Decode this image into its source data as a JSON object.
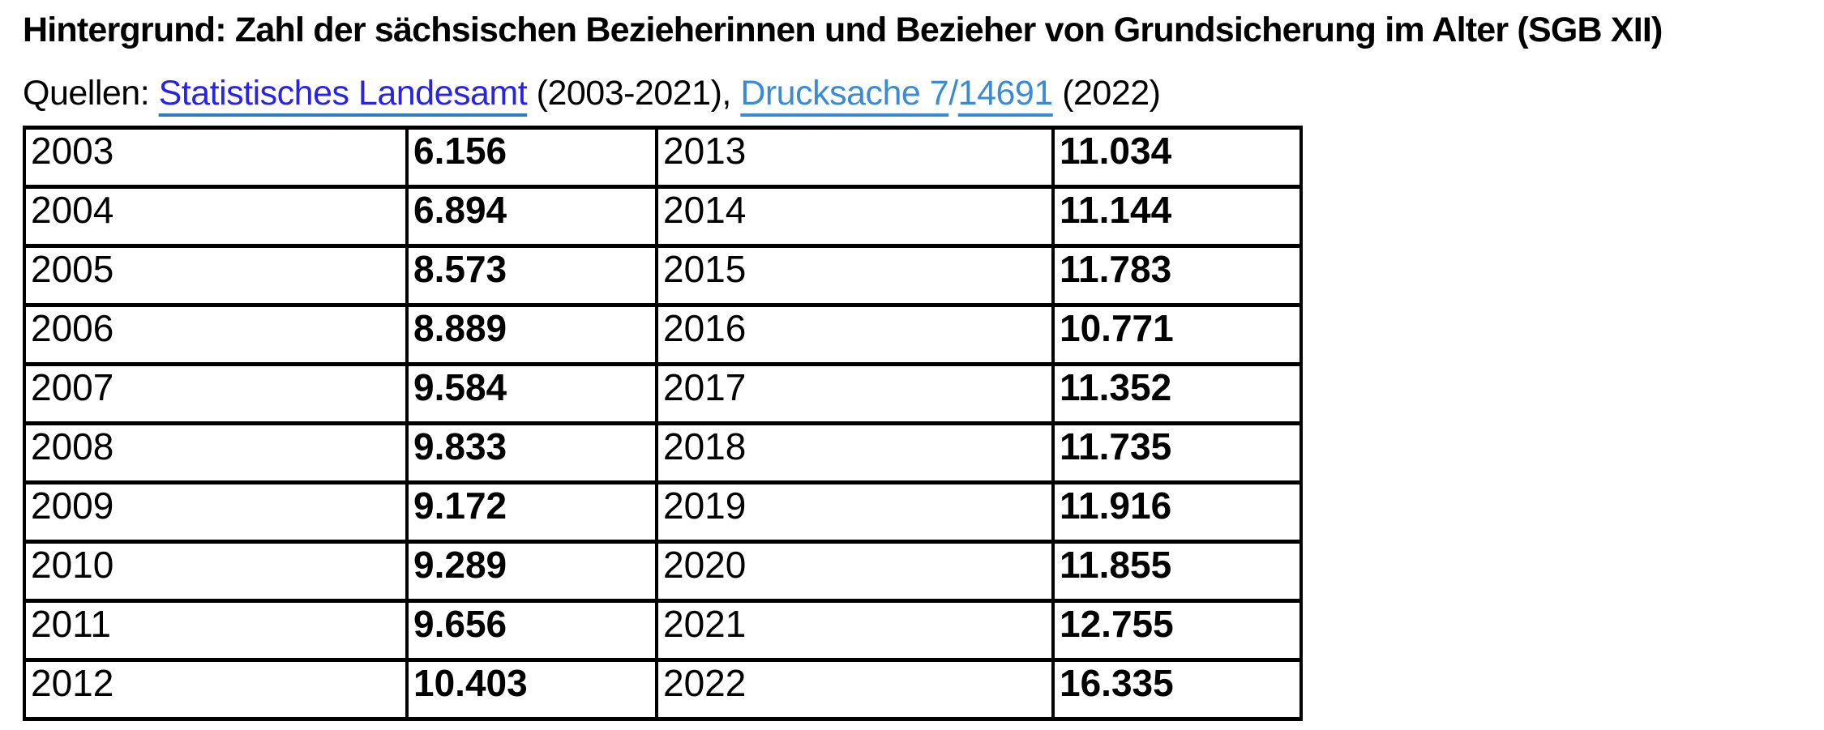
{
  "title": "Hintergrund: Zahl der sächsischen Bezieherinnen und Bezieher von Grundsicherung im Alter (SGB XII)",
  "sources": {
    "prefix": "Quellen: ",
    "link_landesamt": "Statistisches Landesamt",
    "between": " (2003-2021), ",
    "link_drucksache": "Drucksache 7",
    "slash": "/",
    "link_number": "14691",
    "suffix": " (2022)"
  },
  "colors": {
    "text": "#000000",
    "border": "#000000",
    "background": "#ffffff",
    "link_primary": "#2823e6",
    "link_primary_underline": "#2e7cc3",
    "link_secondary": "#3a8bd4"
  },
  "table": {
    "rows": [
      {
        "year_left": "2003",
        "value_left": "6.156",
        "year_right": "2013",
        "value_right": "11.034"
      },
      {
        "year_left": "2004",
        "value_left": "6.894",
        "year_right": "2014",
        "value_right": "11.144"
      },
      {
        "year_left": "2005",
        "value_left": "8.573",
        "year_right": "2015",
        "value_right": "11.783"
      },
      {
        "year_left": "2006",
        "value_left": "8.889",
        "year_right": "2016",
        "value_right": "10.771"
      },
      {
        "year_left": "2007",
        "value_left": "9.584",
        "year_right": "2017",
        "value_right": "11.352"
      },
      {
        "year_left": "2008",
        "value_left": "9.833",
        "year_right": "2018",
        "value_right": "11.735"
      },
      {
        "year_left": "2009",
        "value_left": "9.172",
        "year_right": "2019",
        "value_right": "11.916"
      },
      {
        "year_left": "2010",
        "value_left": "9.289",
        "year_right": "2020",
        "value_right": "11.855"
      },
      {
        "year_left": "2011",
        "value_left": "9.656",
        "year_right": "2021",
        "value_right": "12.755"
      },
      {
        "year_left": "2012",
        "value_left": "10.403",
        "year_right": "2022",
        "value_right": "16.335"
      }
    ]
  }
}
